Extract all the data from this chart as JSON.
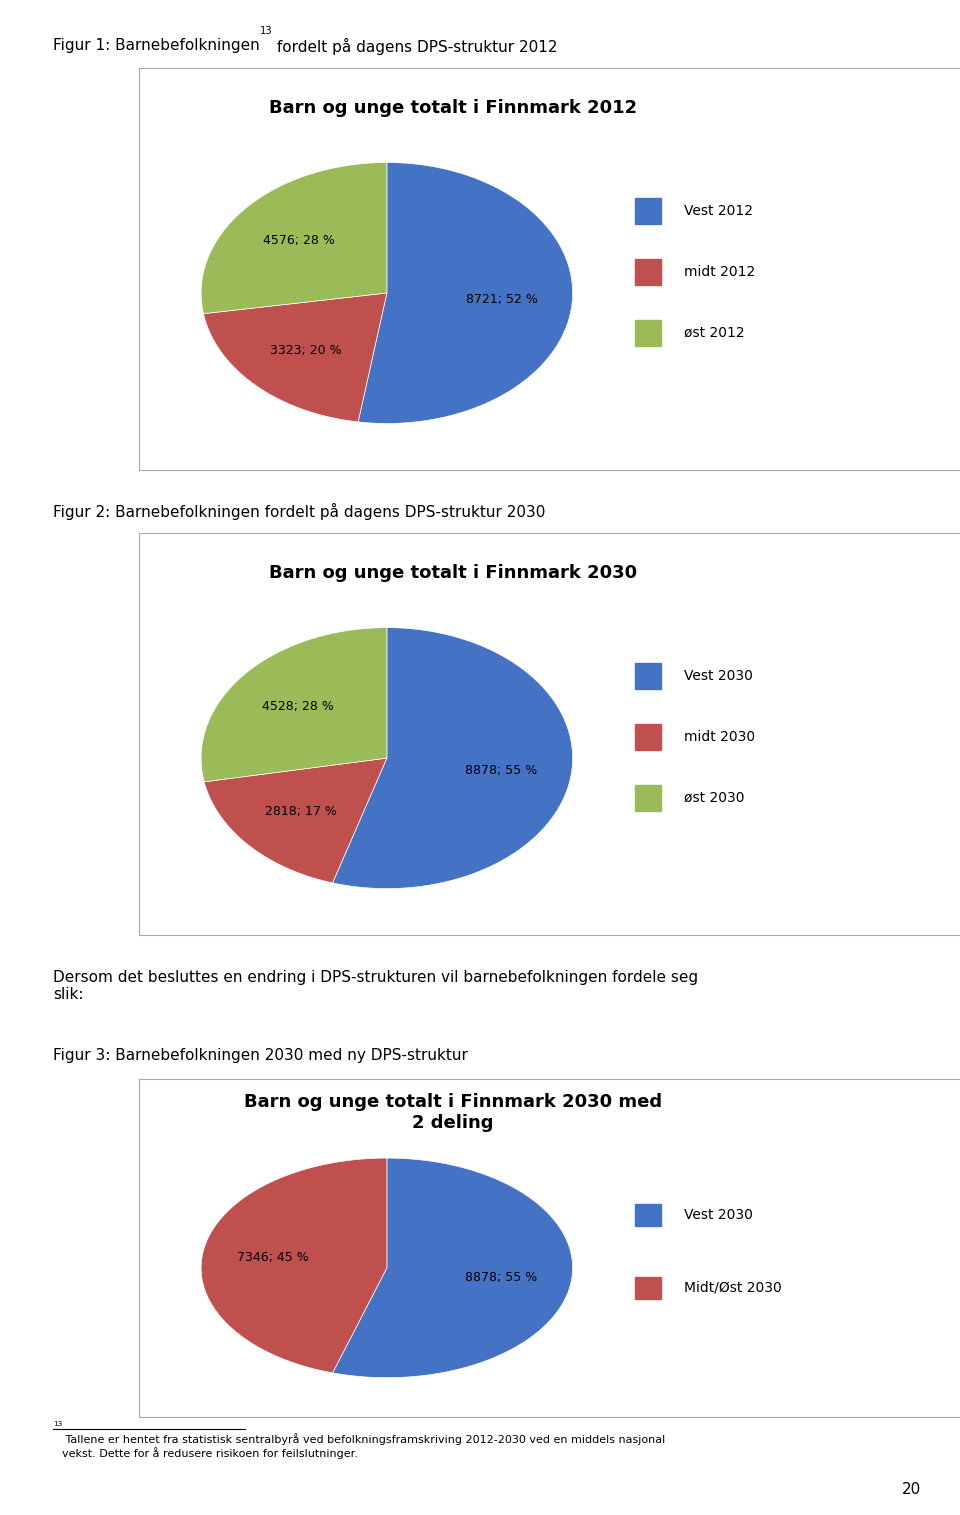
{
  "fig1": {
    "title": "Barn og unge totalt i Finnmark 2012",
    "caption_pre": "Figur 1: Barnebefolkningen",
    "caption_post": " fordelt på dagens DPS-struktur 2012",
    "caption_super": "13",
    "values": [
      8721,
      3323,
      4576
    ],
    "labels": [
      "8721; 52 %",
      "3323; 20 %",
      "4576; 28 %"
    ],
    "legend_labels": [
      "Vest 2012",
      "midt 2012",
      "øst 2012"
    ],
    "colors": [
      "#4472C4",
      "#C0504D",
      "#9BBB59"
    ],
    "label_offsets": [
      0.55,
      0.55,
      0.55
    ]
  },
  "fig2": {
    "title": "Barn og unge totalt i Finnmark 2030",
    "caption_pre": "Figur 2: Barnebefolkningen fordelt på dagens DPS-struktur 2030",
    "caption_post": "",
    "caption_super": "",
    "values": [
      8878,
      2818,
      4528
    ],
    "labels": [
      "8878; 55 %",
      "2818; 17 %",
      "4528; 28 %"
    ],
    "legend_labels": [
      "Vest 2030",
      "midt 2030",
      "øst 2030"
    ],
    "colors": [
      "#4472C4",
      "#C0504D",
      "#9BBB59"
    ],
    "label_offsets": [
      0.55,
      0.55,
      0.55
    ]
  },
  "fig3": {
    "title": "Barn og unge totalt i Finnmark 2030 med\n2 deling",
    "caption_pre": "Figur 3: Barnebefolkningen 2030 med ny DPS-struktur",
    "caption_post": "",
    "caption_super": "",
    "values": [
      8878,
      7346
    ],
    "labels": [
      "8878; 55 %",
      "7346; 45 %"
    ],
    "legend_labels": [
      "Vest 2030",
      "Midt/Øst 2030"
    ],
    "colors": [
      "#4472C4",
      "#C0504D"
    ],
    "label_offsets": [
      0.55,
      0.55
    ]
  },
  "between_text": "Dersom det besluttes en endring i DPS-strukturen vil barnebefolkningen fordele seg\nslik:",
  "footnote_text": " Tallene er hentet fra statistisk sentralbyrå ved befolkningsframskriving 2012-2030 ved en middels nasjonal\nvekst. Dette for å redusere risikoen for feilslutninger.",
  "footnote_super": "13",
  "page_number": "20",
  "bg_color": "#FFFFFF"
}
